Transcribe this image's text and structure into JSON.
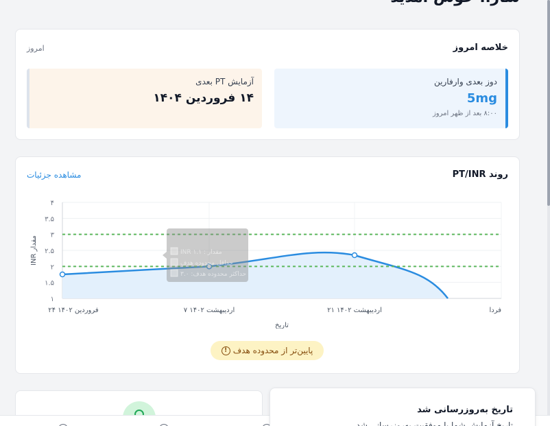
{
  "greeting": "سارا، خوش آمدید",
  "summary": {
    "title": "خلاصه امروز",
    "date_label": "امروز",
    "dose": {
      "label": "دوز بعدی وارفارین",
      "value": "5mg",
      "time": "۸:۰۰ بعد از ظهر امروز"
    },
    "pt_test": {
      "label": "آزمایش PT بعدی",
      "date": "۱۴ فروردین ۱۴۰۴"
    }
  },
  "trend": {
    "title": "روند PT/INR",
    "details_link": "مشاهده جزئیات",
    "status_badge": "پایین‌تر از محدوده هدف",
    "status_icon": "alert-circle-icon",
    "tooltip_labels": [
      "INR ۱.۱ : مقدار",
      "حداقل محدوده هدف",
      "حداکثر محدوده هدف: ۳.۰"
    ]
  },
  "chart_data": {
    "type": "line",
    "xlabel": "تاریخ",
    "ylabel": "INR مقدار",
    "categories": [
      "۲۴ فروردین ۱۴۰۲",
      "۷ اردیبهشت ۱۴۰۲",
      "۲۱ اردیبهشت ۱۴۰۲",
      "فردا"
    ],
    "y_ticks": [
      "۱",
      "۱.۵",
      "۲",
      "۲.۵",
      "۳",
      "۳.۵",
      "۴"
    ],
    "ylim": [
      1,
      4
    ],
    "series": [
      {
        "values": [
          1.75,
          2.0,
          2.35,
          null
        ],
        "color": "#2a8ce0",
        "fill": true
      }
    ],
    "reference_lines": [
      {
        "value": 2.0,
        "color": "#5cb85c",
        "style": "dashed"
      },
      {
        "value": 3.0,
        "color": "#5cb85c",
        "style": "dashed"
      }
    ],
    "grid": true
  },
  "history": {
    "title": "تاریخ به‌روزرسانی شد",
    "subtitle": "تاریخ آزمایش شما با موفقیت به‌روزرسانی شد"
  }
}
